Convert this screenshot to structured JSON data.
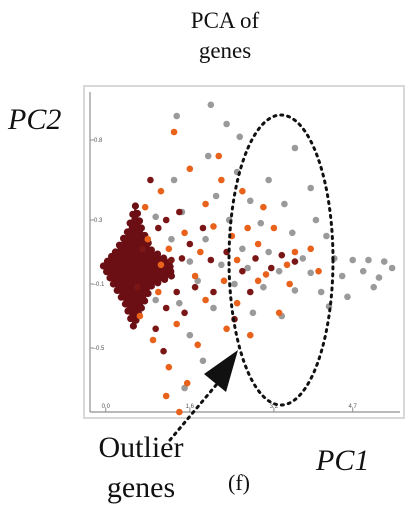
{
  "chart_data": {
    "type": "scatter",
    "title": "PCA of\ngenes",
    "xlabel": "PC1",
    "ylabel": "PC2",
    "x_ticks": [
      "0.0",
      "1.6",
      "3.2",
      "4.7"
    ],
    "y_ticks": [
      "0.8",
      "0.3",
      "-0.1",
      "-0.5"
    ],
    "xlim": [
      -0.3,
      5.6
    ],
    "ylim": [
      -0.9,
      1.1
    ],
    "grid": false,
    "annotations": [
      {
        "text": "Outlier\ngenes"
      }
    ],
    "panel_label": "(f)",
    "series": [
      {
        "color": "#9a9a9a",
        "points": [
          [
            2.0,
            1.02
          ],
          [
            1.35,
            0.95
          ],
          [
            2.3,
            0.9
          ],
          [
            2.55,
            0.82
          ],
          [
            3.6,
            0.75
          ],
          [
            1.95,
            0.7
          ],
          [
            2.5,
            0.6
          ],
          [
            3.1,
            0.55
          ],
          [
            3.9,
            0.5
          ],
          [
            1.3,
            0.55
          ],
          [
            2.1,
            0.45
          ],
          [
            2.75,
            0.42
          ],
          [
            3.4,
            0.4
          ],
          [
            4.0,
            0.3
          ],
          [
            1.45,
            0.35
          ],
          [
            2.35,
            0.3
          ],
          [
            2.95,
            0.28
          ],
          [
            3.55,
            0.22
          ],
          [
            4.2,
            0.2
          ],
          [
            1.25,
            0.18
          ],
          [
            1.9,
            0.18
          ],
          [
            2.6,
            0.12
          ],
          [
            3.1,
            0.1
          ],
          [
            3.75,
            0.06
          ],
          [
            4.35,
            0.06
          ],
          [
            4.7,
            0.05
          ],
          [
            5.0,
            0.05
          ],
          [
            5.3,
            0.04
          ],
          [
            1.6,
            0.04
          ],
          [
            2.2,
            0.02
          ],
          [
            2.7,
            0.0
          ],
          [
            3.3,
            -0.02
          ],
          [
            3.9,
            -0.03
          ],
          [
            4.5,
            -0.05
          ],
          [
            4.9,
            -0.02
          ],
          [
            5.2,
            -0.06
          ],
          [
            5.45,
            0.0
          ],
          [
            1.75,
            -0.08
          ],
          [
            2.45,
            -0.1
          ],
          [
            3.0,
            -0.12
          ],
          [
            3.6,
            -0.14
          ],
          [
            4.1,
            -0.15
          ],
          [
            4.6,
            -0.18
          ],
          [
            1.4,
            -0.22
          ],
          [
            2.05,
            -0.25
          ],
          [
            2.8,
            -0.28
          ],
          [
            3.35,
            -0.3
          ],
          [
            1.6,
            -0.42
          ],
          [
            1.85,
            -0.58
          ],
          [
            1.5,
            -0.75
          ],
          [
            0.95,
            0.32
          ],
          [
            0.95,
            -0.2
          ],
          [
            4.25,
            -0.24
          ],
          [
            5.1,
            -0.12
          ]
        ]
      },
      {
        "color": "#e8621c",
        "points": [
          [
            1.3,
            0.85
          ],
          [
            1.6,
            0.62
          ],
          [
            2.2,
            0.55
          ],
          [
            2.6,
            0.48
          ],
          [
            1.05,
            0.48
          ],
          [
            1.9,
            0.4
          ],
          [
            3.0,
            0.38
          ],
          [
            2.4,
            0.2
          ],
          [
            1.5,
            0.22
          ],
          [
            2.05,
            0.26
          ],
          [
            3.2,
            0.25
          ],
          [
            3.6,
            0.1
          ],
          [
            2.9,
            0.15
          ],
          [
            3.45,
            0.02
          ],
          [
            2.5,
            0.05
          ],
          [
            1.8,
            0.1
          ],
          [
            1.7,
            -0.05
          ],
          [
            2.25,
            -0.08
          ],
          [
            2.9,
            -0.08
          ],
          [
            3.5,
            -0.1
          ],
          [
            1.9,
            -0.2
          ],
          [
            2.5,
            -0.22
          ],
          [
            1.35,
            -0.35
          ],
          [
            2.3,
            -0.38
          ],
          [
            1.75,
            -0.48
          ],
          [
            2.75,
            -0.42
          ],
          [
            1.2,
            -0.62
          ],
          [
            1.55,
            -0.72
          ],
          [
            1.15,
            -0.8
          ],
          [
            1.4,
            -0.9
          ],
          [
            0.75,
            0.38
          ],
          [
            0.8,
            0.18
          ],
          [
            0.65,
            -0.3
          ],
          [
            0.9,
            -0.45
          ],
          [
            1.05,
            0.02
          ],
          [
            1.2,
            0.12
          ],
          [
            3.05,
            -0.04
          ],
          [
            2.7,
            0.25
          ],
          [
            3.9,
            0.12
          ],
          [
            2.15,
            0.7
          ],
          [
            3.3,
            -0.28
          ],
          [
            4.05,
            -0.02
          ],
          [
            1.0,
            -0.15
          ]
        ]
      },
      {
        "color": "#7a1616",
        "points": [
          [
            0.85,
            0.55
          ],
          [
            1.0,
            0.25
          ],
          [
            1.15,
            0.3
          ],
          [
            1.25,
            0.05
          ],
          [
            1.45,
            0.06
          ],
          [
            1.6,
            0.15
          ],
          [
            1.7,
            -0.12
          ],
          [
            1.35,
            -0.15
          ],
          [
            1.15,
            -0.25
          ],
          [
            1.5,
            -0.28
          ],
          [
            0.95,
            -0.38
          ],
          [
            2.0,
            0.05
          ],
          [
            2.3,
            0.1
          ],
          [
            2.6,
            -0.02
          ],
          [
            2.85,
            0.06
          ],
          [
            3.15,
            0.0
          ],
          [
            3.35,
            0.08
          ],
          [
            2.05,
            -0.15
          ],
          [
            2.45,
            -0.32
          ],
          [
            1.1,
            -0.52
          ],
          [
            1.4,
            0.35
          ],
          [
            0.7,
            0.12
          ],
          [
            0.6,
            -0.12
          ],
          [
            3.6,
            0.04
          ],
          [
            1.85,
            0.25
          ],
          [
            2.75,
            -0.15
          ]
        ]
      }
    ],
    "dense_core": {
      "color": "#6b0f14",
      "center": [
        0.45,
        0.0
      ]
    }
  }
}
